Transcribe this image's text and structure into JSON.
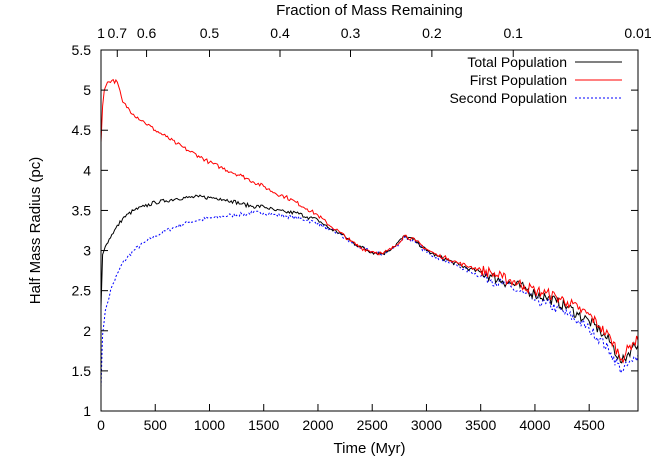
{
  "chart_data": {
    "type": "line",
    "xlabel": "Time (Myr)",
    "ylabel": "Half Mass Radius (pc)",
    "x2label": "Fraction of Mass Remaining",
    "xlim": [
      0,
      4950
    ],
    "ylim": [
      1,
      5.5
    ],
    "grid": false,
    "legend_position": "top-right",
    "x_ticks": [
      0,
      500,
      1000,
      1500,
      2000,
      2500,
      3000,
      3500,
      4000,
      4500
    ],
    "y_ticks": [
      1,
      1.5,
      2,
      2.5,
      3,
      3.5,
      4,
      4.5,
      5,
      5.5
    ],
    "x2_ticks": [
      {
        "label": "1",
        "time": 0
      },
      {
        "label": "0.7",
        "time": 150
      },
      {
        "label": "0.6",
        "time": 420
      },
      {
        "label": "0.5",
        "time": 1000
      },
      {
        "label": "0.4",
        "time": 1650
      },
      {
        "label": "0.3",
        "time": 2300
      },
      {
        "label": "0.2",
        "time": 3050
      },
      {
        "label": "0.1",
        "time": 3800
      },
      {
        "label": "0.01",
        "time": 4950
      }
    ],
    "series": [
      {
        "name": "Total Population",
        "color": "#000000",
        "dash": "solid",
        "x": [
          0,
          15,
          40,
          100,
          200,
          300,
          400,
          500,
          600,
          700,
          800,
          900,
          1000,
          1100,
          1200,
          1300,
          1400,
          1500,
          1600,
          1700,
          1800,
          1900,
          2000,
          2100,
          2200,
          2300,
          2400,
          2500,
          2600,
          2700,
          2800,
          2900,
          3000,
          3100,
          3200,
          3300,
          3400,
          3500,
          3600,
          3700,
          3800,
          3900,
          4000,
          4100,
          4200,
          4300,
          4400,
          4500,
          4600,
          4700,
          4800,
          4900,
          4950
        ],
        "y": [
          2.3,
          2.95,
          3.05,
          3.2,
          3.4,
          3.5,
          3.55,
          3.6,
          3.62,
          3.65,
          3.66,
          3.67,
          3.66,
          3.65,
          3.62,
          3.58,
          3.55,
          3.55,
          3.5,
          3.48,
          3.47,
          3.42,
          3.38,
          3.28,
          3.22,
          3.12,
          3.04,
          2.98,
          2.96,
          3.05,
          3.18,
          3.12,
          3.0,
          2.93,
          2.88,
          2.82,
          2.77,
          2.73,
          2.68,
          2.62,
          2.58,
          2.53,
          2.46,
          2.42,
          2.36,
          2.3,
          2.2,
          2.12,
          2.0,
          1.85,
          1.6,
          1.8,
          1.82
        ]
      },
      {
        "name": "First Population",
        "color": "#ff0000",
        "dash": "solid",
        "x": [
          0,
          15,
          30,
          60,
          100,
          150,
          200,
          300,
          400,
          500,
          600,
          700,
          800,
          900,
          1000,
          1100,
          1200,
          1300,
          1400,
          1500,
          1600,
          1700,
          1800,
          1900,
          2000,
          2100,
          2200,
          2300,
          2400,
          2500,
          2600,
          2700,
          2800,
          2900,
          3000,
          3100,
          3200,
          3300,
          3400,
          3500,
          3600,
          3700,
          3800,
          3900,
          4000,
          4100,
          4200,
          4300,
          4400,
          4500,
          4600,
          4700,
          4800,
          4900,
          4950
        ],
        "y": [
          4.35,
          4.8,
          5.0,
          5.1,
          5.12,
          5.1,
          4.85,
          4.7,
          4.6,
          4.5,
          4.42,
          4.33,
          4.25,
          4.18,
          4.1,
          4.04,
          3.98,
          3.93,
          3.86,
          3.8,
          3.72,
          3.67,
          3.6,
          3.52,
          3.44,
          3.32,
          3.23,
          3.12,
          3.03,
          2.99,
          2.96,
          3.04,
          3.19,
          3.12,
          3.02,
          2.94,
          2.9,
          2.84,
          2.8,
          2.76,
          2.72,
          2.66,
          2.62,
          2.56,
          2.5,
          2.47,
          2.42,
          2.36,
          2.27,
          2.2,
          2.05,
          1.9,
          1.65,
          1.85,
          1.88
        ]
      },
      {
        "name": "Second Population",
        "color": "#0000ff",
        "dash": "dotted",
        "x": [
          0,
          15,
          40,
          100,
          200,
          300,
          400,
          500,
          600,
          700,
          800,
          900,
          1000,
          1100,
          1200,
          1300,
          1400,
          1500,
          1600,
          1700,
          1800,
          1900,
          2000,
          2100,
          2200,
          2300,
          2400,
          2500,
          2600,
          2700,
          2800,
          2900,
          3000,
          3100,
          3200,
          3300,
          3400,
          3500,
          3600,
          3700,
          3800,
          3900,
          4000,
          4100,
          4200,
          4300,
          4400,
          4500,
          4600,
          4700,
          4800,
          4900,
          4950
        ],
        "y": [
          1.3,
          1.95,
          2.25,
          2.55,
          2.85,
          3.0,
          3.1,
          3.18,
          3.25,
          3.3,
          3.35,
          3.38,
          3.4,
          3.42,
          3.44,
          3.45,
          3.47,
          3.47,
          3.45,
          3.43,
          3.41,
          3.38,
          3.34,
          3.26,
          3.2,
          3.1,
          3.03,
          2.98,
          2.95,
          3.03,
          3.17,
          3.1,
          2.98,
          2.92,
          2.86,
          2.8,
          2.74,
          2.68,
          2.64,
          2.58,
          2.52,
          2.46,
          2.38,
          2.34,
          2.28,
          2.2,
          2.12,
          2.02,
          1.9,
          1.72,
          1.5,
          1.62,
          1.7
        ]
      }
    ]
  }
}
